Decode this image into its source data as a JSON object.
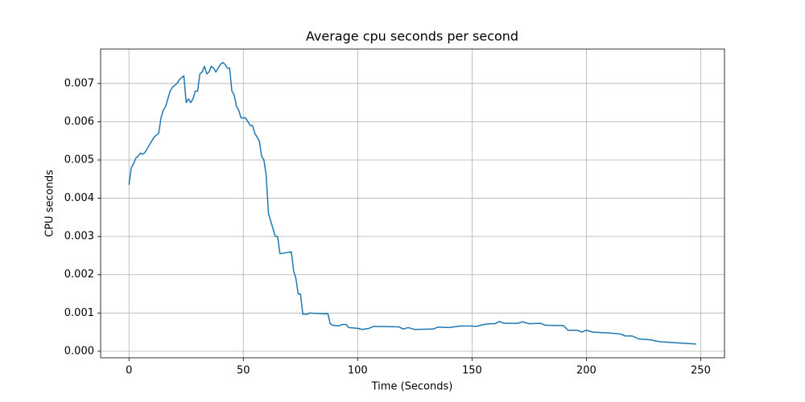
{
  "chart_data": {
    "type": "line",
    "title": "Average cpu seconds per second",
    "xlabel": "Time (Seconds)",
    "ylabel": "CPU seconds",
    "color": "#1f77b4",
    "grid": true,
    "xlim": [
      -12.4,
      260.4
    ],
    "ylim": [
      -0.00017,
      0.0079
    ],
    "xticks": [
      0,
      50,
      100,
      150,
      200,
      250
    ],
    "yticks": [
      {
        "value": 0,
        "label": "0.000"
      },
      0.001,
      0.002,
      0.003,
      0.004,
      0.005,
      0.006,
      0.007
    ],
    "x": [
      0,
      1,
      2,
      3,
      4,
      5,
      6,
      7,
      8,
      9,
      10,
      11,
      12,
      13,
      14,
      15,
      16,
      17,
      18,
      19,
      20,
      21,
      22,
      23,
      24,
      25,
      26,
      27,
      28,
      29,
      30,
      31,
      32,
      33,
      34,
      35,
      36,
      37,
      38,
      39,
      40,
      41,
      42,
      43,
      44,
      45,
      46,
      47,
      48,
      49,
      50,
      51,
      52,
      53,
      54,
      55,
      56,
      57,
      58,
      59,
      60,
      61,
      62,
      63,
      64,
      65,
      66,
      71,
      72,
      73,
      74,
      75,
      76,
      78,
      79,
      85,
      87,
      88,
      89,
      92,
      93,
      95,
      96,
      100,
      102,
      105,
      107,
      118,
      120,
      122,
      125,
      133,
      135,
      140,
      145,
      150,
      152,
      155,
      158,
      160,
      162,
      164,
      170,
      172,
      175,
      180,
      182,
      190,
      192,
      196,
      198,
      200,
      203,
      210,
      215,
      217,
      220,
      223,
      228,
      232,
      240,
      248
    ],
    "values": [
      0.00435,
      0.0048,
      0.0049,
      0.00505,
      0.0051,
      0.00518,
      0.00515,
      0.0052,
      0.0053,
      0.0054,
      0.0055,
      0.0056,
      0.00565,
      0.0057,
      0.0061,
      0.0063,
      0.0064,
      0.0066,
      0.0068,
      0.0069,
      0.00695,
      0.007,
      0.0071,
      0.00715,
      0.0072,
      0.0065,
      0.0066,
      0.0065,
      0.0066,
      0.0068,
      0.0068,
      0.00725,
      0.0073,
      0.00745,
      0.00725,
      0.0073,
      0.00745,
      0.0074,
      0.0073,
      0.0074,
      0.0075,
      0.00755,
      0.0075,
      0.0074,
      0.0074,
      0.0068,
      0.0067,
      0.0064,
      0.0063,
      0.0061,
      0.0061,
      0.0061,
      0.006,
      0.0059,
      0.0059,
      0.0057,
      0.0056,
      0.0055,
      0.0051,
      0.005,
      0.0046,
      0.0036,
      0.0034,
      0.0032,
      0.003,
      0.003,
      0.00255,
      0.0026,
      0.0021,
      0.0019,
      0.0015,
      0.0015,
      0.00097,
      0.00097,
      0.001,
      0.00098,
      0.00098,
      0.00072,
      0.00068,
      0.00066,
      0.0007,
      0.0007,
      0.00062,
      0.0006,
      0.00057,
      0.0006,
      0.00065,
      0.00064,
      0.00058,
      0.00062,
      0.00057,
      0.00058,
      0.00063,
      0.00062,
      0.00066,
      0.00066,
      0.00065,
      0.0007,
      0.00072,
      0.00072,
      0.00078,
      0.00073,
      0.00073,
      0.00077,
      0.00072,
      0.00073,
      0.00068,
      0.00067,
      0.00055,
      0.00055,
      0.0005,
      0.00055,
      0.0005,
      0.00048,
      0.00045,
      0.0004,
      0.0004,
      0.00032,
      0.0003,
      0.00025,
      0.00022,
      0.00019
    ]
  }
}
